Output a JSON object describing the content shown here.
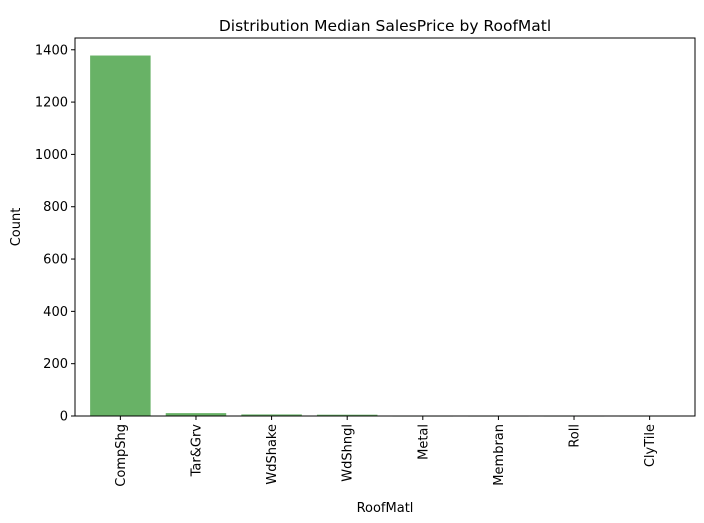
{
  "chart_data": {
    "type": "bar",
    "title": "Distribution Median SalesPrice by RoofMatl",
    "xlabel": "RoofMatl",
    "ylabel": "Count",
    "categories": [
      "CompShg",
      "Tar&Grv",
      "WdShake",
      "WdShngl",
      "Metal",
      "Membran",
      "Roll",
      "ClyTile"
    ],
    "values": [
      1378,
      11,
      6,
      5,
      1,
      1,
      1,
      1
    ],
    "ylim": [
      0,
      1445
    ],
    "yticks": [
      0,
      200,
      400,
      600,
      800,
      1000,
      1200,
      1400
    ],
    "bar_color": "#68b266",
    "grid": false,
    "legend": "none"
  }
}
